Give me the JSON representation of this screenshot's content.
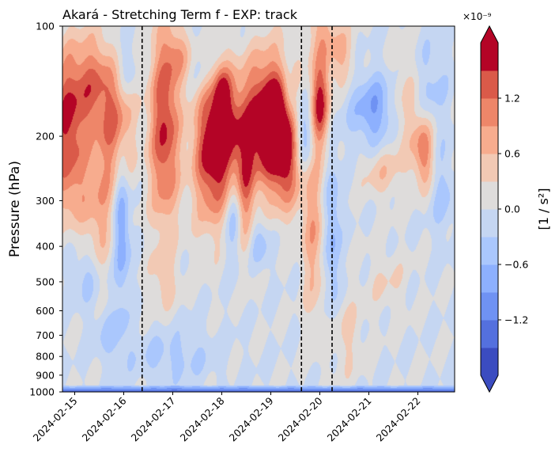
{
  "chart_data": {
    "type": "heatmap",
    "title": "Akará - Stretching Term f - EXP: track",
    "ylabel": "Pressure (hPa)",
    "xlabel": "",
    "y_scale": "log",
    "y_inverted": true,
    "ylim": [
      1000,
      100
    ],
    "y_ticks": [
      100,
      200,
      300,
      400,
      500,
      600,
      700,
      800,
      900,
      1000
    ],
    "x_range": [
      "2024-02-14T18:00",
      "2024-02-22T18:00"
    ],
    "x_tick_dates": [
      "2024-02-15",
      "2024-02-16",
      "2024-02-17",
      "2024-02-18",
      "2024-02-19",
      "2024-02-20",
      "2024-02-21",
      "2024-02-22"
    ],
    "vertical_lines": [
      "2024-02-16T09:00",
      "2024-02-19T15:00",
      "2024-02-20T06:00"
    ],
    "colorbar": {
      "label": "[1 / s²]",
      "multiplier": "×10⁻⁹",
      "levels": [
        -1.5,
        -1.2,
        -0.9,
        -0.6,
        -0.3,
        0.0,
        0.3,
        0.6,
        0.9,
        1.2,
        1.5
      ],
      "tick_values": [
        -1.2,
        -0.6,
        0.0,
        0.6,
        1.2
      ],
      "tick_labels": [
        "−1.2",
        "−0.6",
        "0.0",
        "0.6",
        "1.2"
      ],
      "colors": [
        "#3b4cc0",
        "#5470de",
        "#6f92f3",
        "#8db0fe",
        "#aac7fd",
        "#c5d6f2",
        "#dedcdb",
        "#f2c9b4",
        "#f7ac8e",
        "#ee8669",
        "#da5a49",
        "#b40426"
      ],
      "extend": "both",
      "colormap": "coolwarm"
    },
    "blobs": [
      {
        "t": "2024-02-14T20:00",
        "p": 180,
        "dt": 0.32,
        "dp": 0.13,
        "v": 1.45
      },
      {
        "t": "2024-02-14T22:00",
        "p": 280,
        "dt": 0.25,
        "dp": 0.08,
        "v": 0.5
      },
      {
        "t": "2024-02-15T09:00",
        "p": 140,
        "dt": 0.3,
        "dp": 0.09,
        "v": 0.9
      },
      {
        "t": "2024-02-15T12:00",
        "p": 320,
        "dt": 0.25,
        "dp": 0.12,
        "v": 0.7
      },
      {
        "t": "2024-02-15T06:00",
        "p": 480,
        "dt": 0.2,
        "dp": 0.06,
        "v": -0.45
      },
      {
        "t": "2024-02-15T20:00",
        "p": 185,
        "dt": 0.25,
        "dp": 0.12,
        "v": 1.15
      },
      {
        "t": "2024-02-15T23:00",
        "p": 350,
        "dt": 0.12,
        "dp": 0.14,
        "v": -1.0
      },
      {
        "t": "2024-02-16T00:00",
        "p": 130,
        "dt": 0.18,
        "dp": 0.06,
        "v": -0.5
      },
      {
        "t": "2024-02-16T20:00",
        "p": 190,
        "dt": 0.22,
        "dp": 0.19,
        "v": 1.55
      },
      {
        "t": "2024-02-16T20:00",
        "p": 500,
        "dt": 0.2,
        "dp": 0.05,
        "v": 0.4
      },
      {
        "t": "2024-02-17T18:00",
        "p": 220,
        "dt": 0.25,
        "dp": 0.14,
        "v": 1.5
      },
      {
        "t": "2024-02-17T03:00",
        "p": 120,
        "dt": 0.2,
        "dp": 0.05,
        "v": 0.6
      },
      {
        "t": "2024-02-17T15:00",
        "p": 130,
        "dt": 0.2,
        "dp": 0.05,
        "v": -0.35
      },
      {
        "t": "2024-02-18T03:00",
        "p": 200,
        "dt": 0.25,
        "dp": 0.12,
        "v": 1.3
      },
      {
        "t": "2024-02-18T06:00",
        "p": 330,
        "dt": 0.12,
        "dp": 0.09,
        "v": -0.7
      },
      {
        "t": "2024-02-18T00:00",
        "p": 150,
        "dt": 0.12,
        "dp": 0.05,
        "v": 0.8
      },
      {
        "t": "2024-02-18T12:00",
        "p": 290,
        "dt": 0.14,
        "dp": 0.12,
        "v": 0.9
      },
      {
        "t": "2024-02-18T22:00",
        "p": 180,
        "dt": 0.35,
        "dp": 0.12,
        "v": 2.0
      },
      {
        "t": "2024-02-19T08:00",
        "p": 210,
        "dt": 0.25,
        "dp": 0.11,
        "v": 1.8
      },
      {
        "t": "2024-02-18T18:00",
        "p": 390,
        "dt": 0.15,
        "dp": 0.05,
        "v": -0.6
      },
      {
        "t": "2024-02-19T15:00",
        "p": 195,
        "dt": 0.22,
        "dp": 0.08,
        "v": -1.4
      },
      {
        "t": "2024-02-19T09:00",
        "p": 150,
        "dt": 0.1,
        "dp": 0.05,
        "v": -0.7
      },
      {
        "t": "2024-02-19T21:00",
        "p": 360,
        "dt": 0.16,
        "dp": 0.17,
        "v": 0.8
      },
      {
        "t": "2024-02-20T00:00",
        "p": 165,
        "dt": 0.14,
        "dp": 0.09,
        "v": 1.75
      },
      {
        "t": "2024-02-20T00:00",
        "p": 100,
        "dt": 0.2,
        "dp": 0.06,
        "v": 0.6
      },
      {
        "t": "2024-02-20T06:00",
        "p": 380,
        "dt": 0.12,
        "dp": 0.17,
        "v": -0.7
      },
      {
        "t": "2024-02-20T12:00",
        "p": 700,
        "dt": 0.25,
        "dp": 0.08,
        "v": 0.4
      },
      {
        "t": "2024-02-20T10:00",
        "p": 120,
        "dt": 0.2,
        "dp": 0.06,
        "v": 0.7
      },
      {
        "t": "2024-02-21T03:00",
        "p": 170,
        "dt": 0.35,
        "dp": 0.07,
        "v": -0.9
      },
      {
        "t": "2024-02-21T06:00",
        "p": 250,
        "dt": 0.3,
        "dp": 0.05,
        "v": 0.5
      },
      {
        "t": "2024-02-21T18:00",
        "p": 170,
        "dt": 0.25,
        "dp": 0.1,
        "v": 0.6
      },
      {
        "t": "2024-02-22T03:00",
        "p": 220,
        "dt": 0.14,
        "dp": 0.07,
        "v": 1.2
      },
      {
        "t": "2024-02-22T06:00",
        "p": 150,
        "dt": 0.25,
        "dp": 0.1,
        "v": -0.45
      },
      {
        "t": "2024-02-22T12:00",
        "p": 290,
        "dt": 0.2,
        "dp": 0.08,
        "v": -0.4
      },
      {
        "t": "2024-02-21T09:00",
        "p": 500,
        "dt": 0.3,
        "dp": 0.06,
        "v": 0.3
      },
      {
        "t": "2024-02-17T00:00",
        "p": 800,
        "dt": 0.6,
        "dp": 0.05,
        "v": -0.4
      },
      {
        "t": "2024-02-15T18:00",
        "p": 700,
        "dt": 0.25,
        "dp": 0.05,
        "v": -0.4
      }
    ],
    "surface_layer": {
      "base_value": -1.5,
      "top_pressure": 960,
      "edge_value": -0.6
    }
  }
}
